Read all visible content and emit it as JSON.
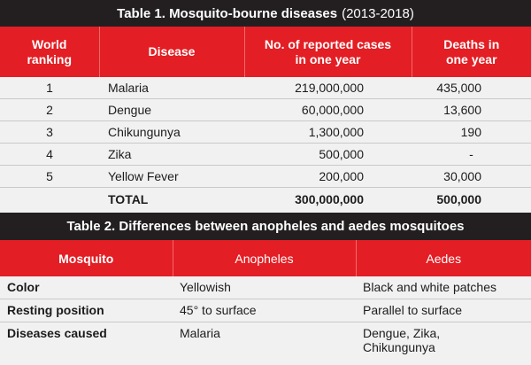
{
  "table1": {
    "title_bold": "Table 1. Mosquito-bourne diseases",
    "title_years": "(2013-2018)",
    "headers": {
      "rank_line1": "World",
      "rank_line2": "ranking",
      "disease": "Disease",
      "cases_line1": "No. of reported cases",
      "cases_line2": "in one year",
      "deaths_line1": "Deaths in",
      "deaths_line2": "one year"
    },
    "rows": [
      {
        "rank": "1",
        "disease": "Malaria",
        "cases": "219,000,000",
        "deaths": "435,000"
      },
      {
        "rank": "2",
        "disease": "Dengue",
        "cases": "60,000,000",
        "deaths": "13,600"
      },
      {
        "rank": "3",
        "disease": "Chikungunya",
        "cases": "1,300,000",
        "deaths": "190"
      },
      {
        "rank": "4",
        "disease": "Zika",
        "cases": "500,000",
        "deaths": "-"
      },
      {
        "rank": "5",
        "disease": "Yellow Fever",
        "cases": "200,000",
        "deaths": "30,000"
      }
    ],
    "total": {
      "label": "TOTAL",
      "cases": "300,000,000",
      "deaths": "500,000"
    }
  },
  "table2": {
    "title": "Table 2. Differences between anopheles and aedes mosquitoes",
    "headers": {
      "mosquito": "Mosquito",
      "a": "Anopheles",
      "b": "Aedes"
    },
    "rows": [
      {
        "label": "Color",
        "a": "Yellowish",
        "b": "Black and white patches"
      },
      {
        "label": "Resting position",
        "a": "45° to surface",
        "b": "Parallel to surface"
      },
      {
        "label": "Diseases caused",
        "a": "Malaria",
        "b_line1": "Dengue, Zika,",
        "b_line2": "Chikungunya"
      }
    ]
  },
  "colors": {
    "title_bg": "#231f20",
    "header_bg": "#e31e24",
    "body_bg": "#f1f1f1"
  }
}
